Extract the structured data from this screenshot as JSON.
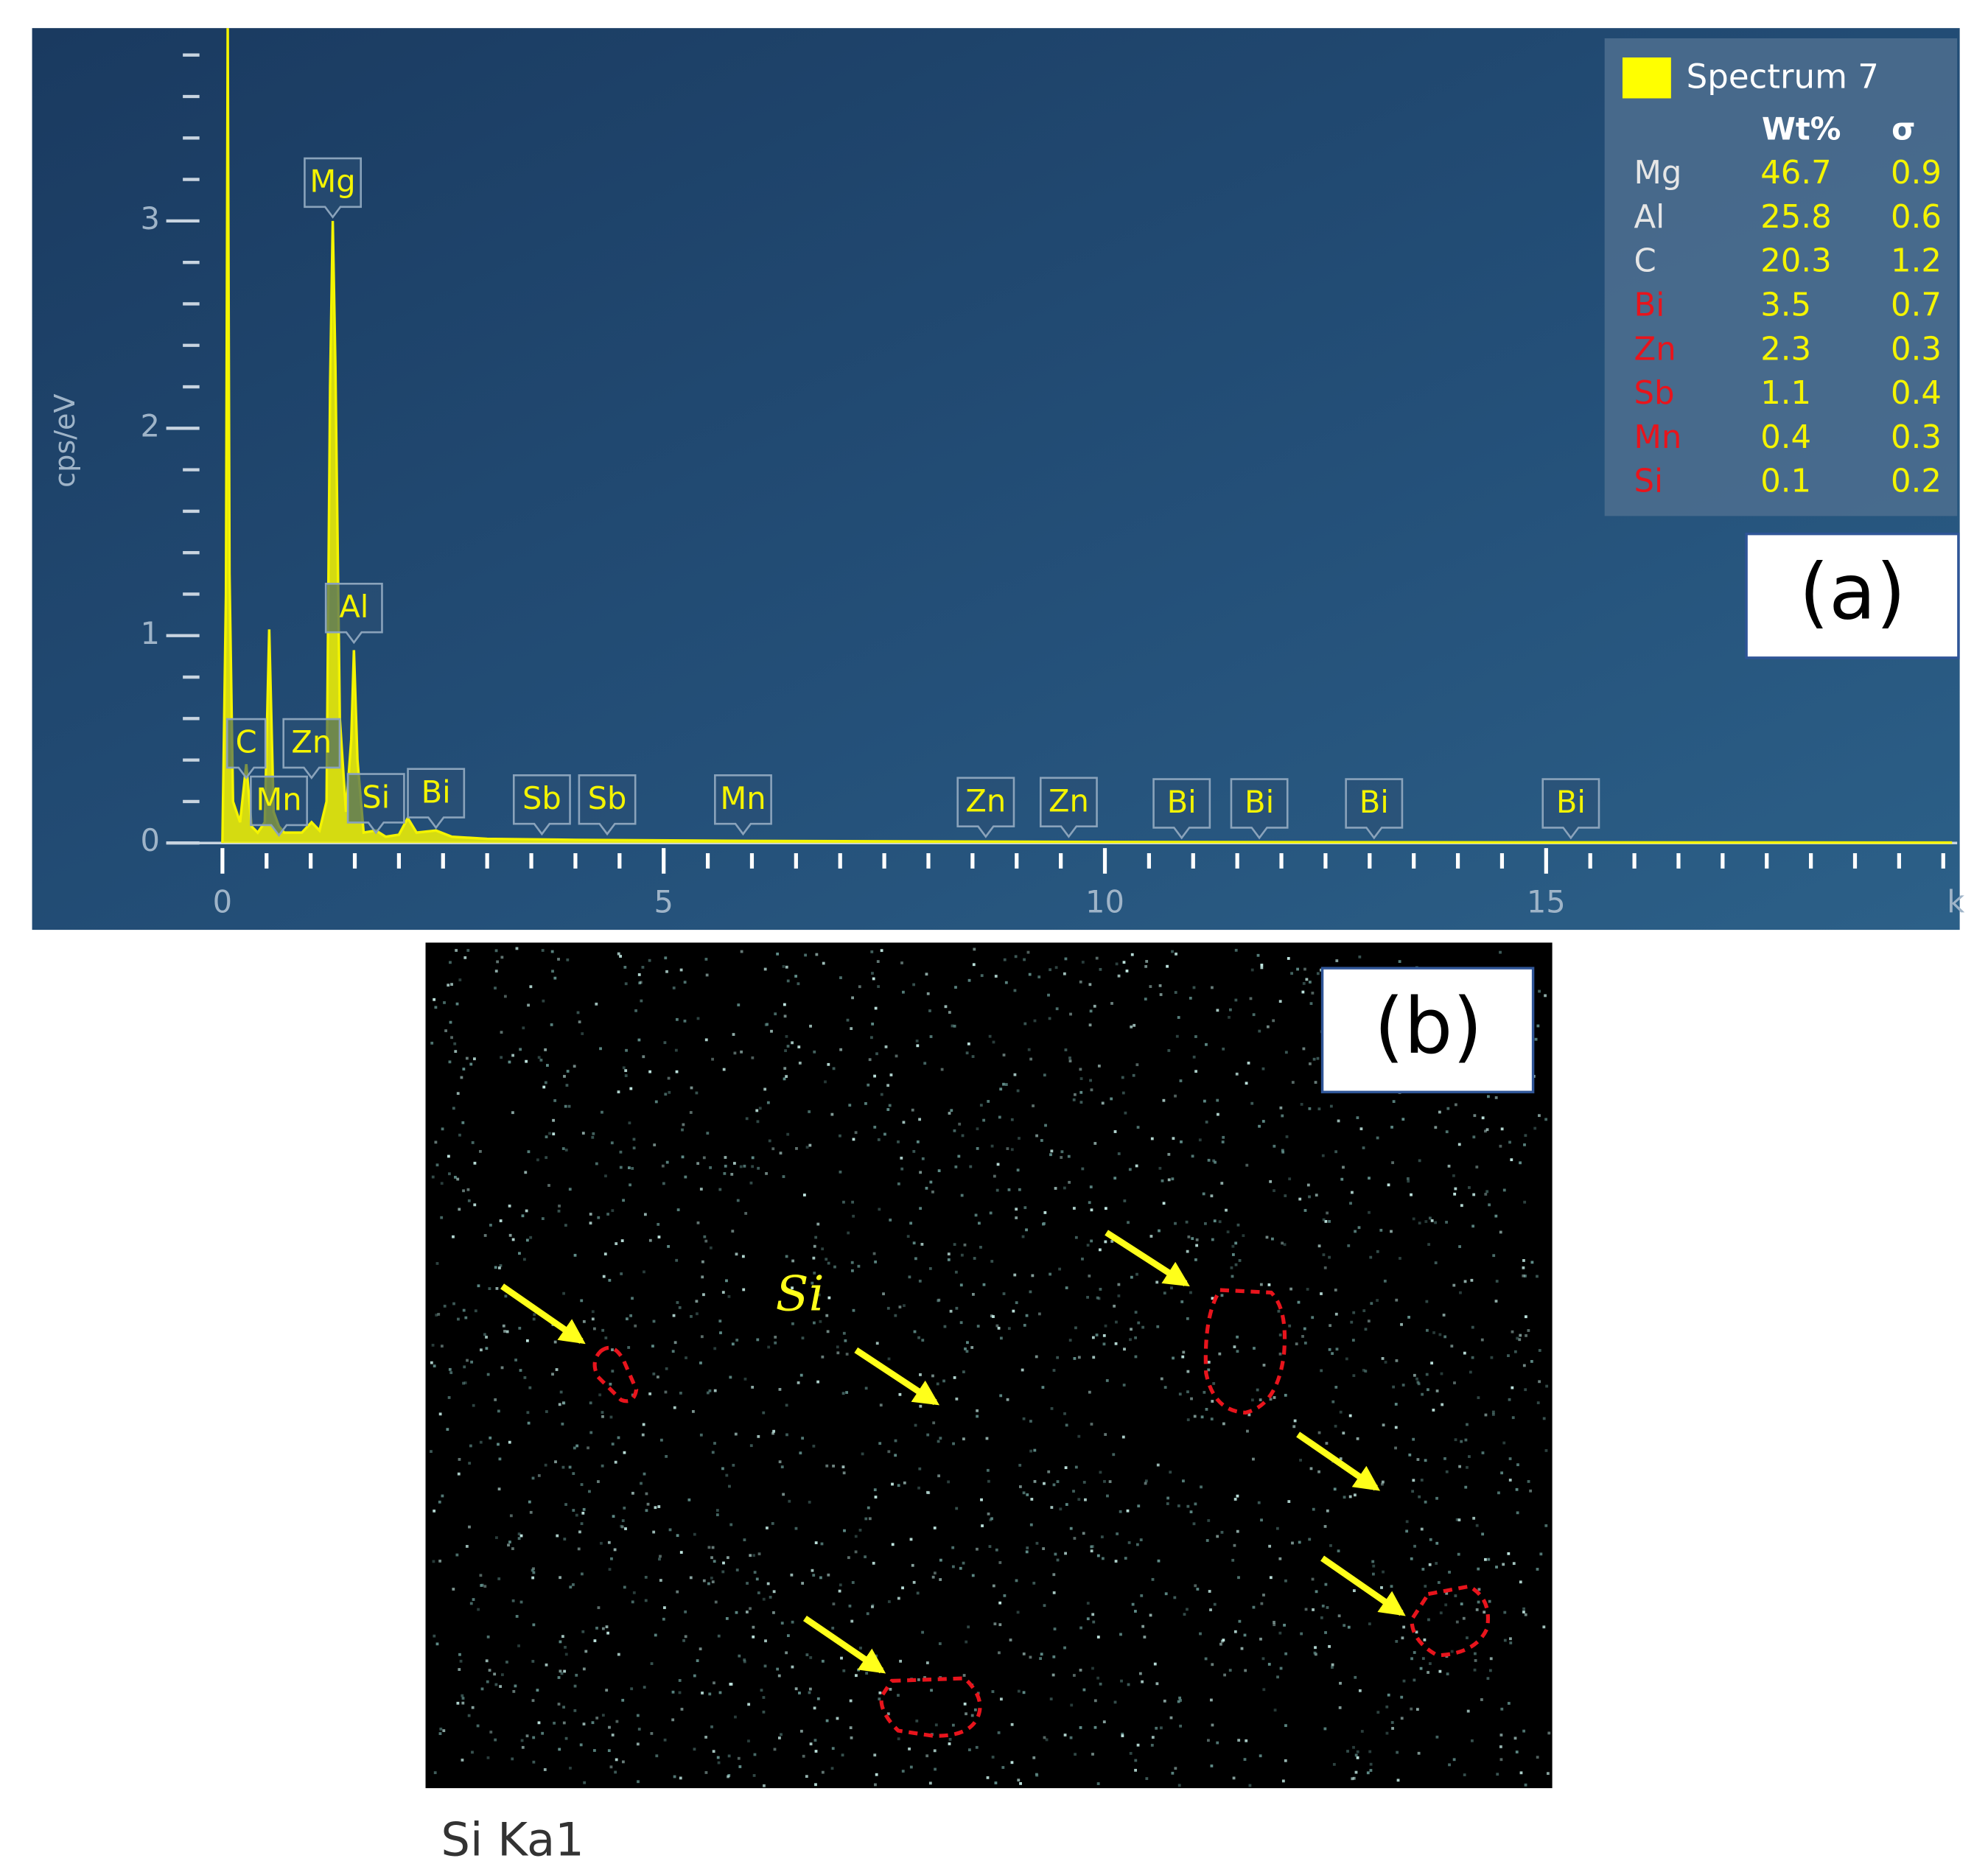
{
  "chart_data": {
    "type": "line",
    "ylabel": "cps/eV",
    "xlabel": "k",
    "xlim": [
      0,
      19.6
    ],
    "ylim": [
      0,
      3.93
    ],
    "xticks": [
      0,
      5,
      10,
      15
    ],
    "yticks": [
      0,
      1,
      2,
      3
    ],
    "color": "#f4f400",
    "x": [
      0,
      0.04,
      0.06,
      0.08,
      0.12,
      0.2,
      0.27,
      0.33,
      0.4,
      0.48,
      0.53,
      0.58,
      0.64,
      0.7,
      0.8,
      0.9,
      1.01,
      1.1,
      1.18,
      1.22,
      1.25,
      1.28,
      1.33,
      1.4,
      1.46,
      1.49,
      1.53,
      1.6,
      1.74,
      1.85,
      2.0,
      2.1,
      2.2,
      2.42,
      2.6,
      3.0,
      4.0,
      6.0,
      10.0,
      15.0,
      19.6
    ],
    "values": [
      0,
      1.2,
      3.93,
      1.3,
      0.2,
      0.1,
      0.38,
      0.08,
      0.05,
      0.1,
      1.03,
      0.15,
      0.08,
      0.05,
      0.05,
      0.05,
      0.1,
      0.06,
      0.2,
      2.2,
      3.0,
      2.3,
      0.6,
      0.15,
      0.5,
      0.93,
      0.4,
      0.05,
      0.06,
      0.03,
      0.04,
      0.12,
      0.05,
      0.06,
      0.03,
      0.02,
      0.015,
      0.01,
      0.005,
      0.003,
      0.002
    ],
    "peak_labels": [
      {
        "label": "C",
        "x": 0.27
      },
      {
        "label": "Mn",
        "x": 0.64
      },
      {
        "label": "Zn",
        "x": 1.01
      },
      {
        "label": "Mg",
        "x": 1.25
      },
      {
        "label": "Al",
        "x": 1.49
      },
      {
        "label": "Si",
        "x": 1.74
      },
      {
        "label": "Bi",
        "x": 2.42
      },
      {
        "label": "Sb",
        "x": 3.62
      },
      {
        "label": "Sb",
        "x": 4.36
      },
      {
        "label": "Mn",
        "x": 5.9
      },
      {
        "label": "Zn",
        "x": 8.65
      },
      {
        "label": "Zn",
        "x": 9.59
      },
      {
        "label": "Bi",
        "x": 10.87
      },
      {
        "label": "Bi",
        "x": 11.75
      },
      {
        "label": "Bi",
        "x": 13.05
      },
      {
        "label": "Bi",
        "x": 15.28
      }
    ],
    "legend": {
      "title": "Spectrum 7",
      "color": "#ffff00",
      "headers": [
        "Wt%",
        "σ"
      ],
      "value_color": "#f4f400",
      "rows": [
        {
          "element": "Mg",
          "wt": 46.7,
          "sigma": 0.9,
          "color": "#e6e6e6"
        },
        {
          "element": "Al",
          "wt": 25.8,
          "sigma": 0.6,
          "color": "#e6e6e6"
        },
        {
          "element": "C",
          "wt": 20.3,
          "sigma": 1.2,
          "color": "#e6e6e6"
        },
        {
          "element": "Bi",
          "wt": 3.5,
          "sigma": 0.7,
          "color": "#e8141c"
        },
        {
          "element": "Zn",
          "wt": 2.3,
          "sigma": 0.3,
          "color": "#e8141c"
        },
        {
          "element": "Sb",
          "wt": 1.1,
          "sigma": 0.4,
          "color": "#e8141c"
        },
        {
          "element": "Mn",
          "wt": 0.4,
          "sigma": 0.3,
          "color": "#e8141c"
        },
        {
          "element": "Si",
          "wt": 0.1,
          "sigma": 0.2,
          "color": "#e8141c"
        }
      ]
    },
    "panel_label": "(a)"
  },
  "map": {
    "panel_label": "(b)",
    "element_label": "Si",
    "caption": "Si Ka1"
  }
}
